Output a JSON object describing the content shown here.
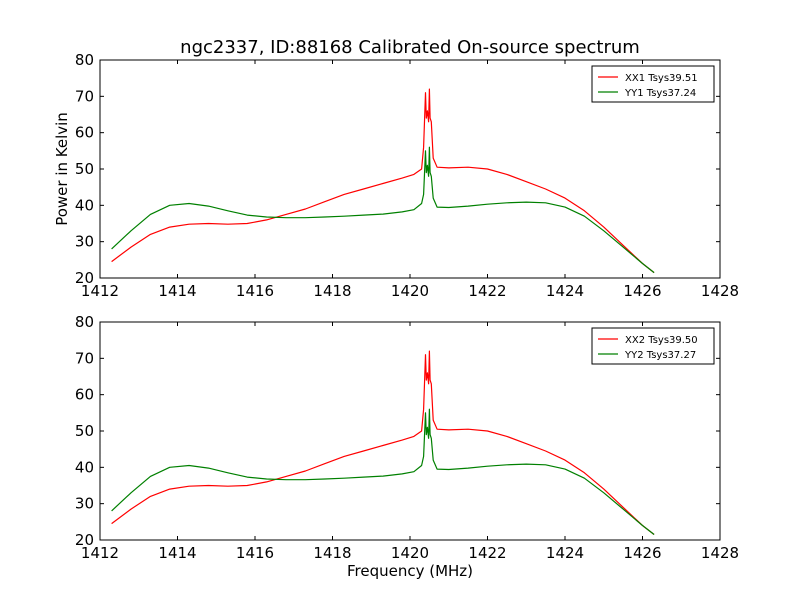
{
  "figure": {
    "title": "ngc2337, ID:88168 Calibrated On-source spectrum",
    "ylabel": "Power in Kelvin",
    "xlabel": "Frequency (MHz)"
  },
  "colors": {
    "xx": "#ff0000",
    "yy": "#008000"
  },
  "chart_data": [
    {
      "type": "line",
      "xlim": [
        1412,
        1428
      ],
      "ylim": [
        20,
        80
      ],
      "xticks": [
        1412,
        1414,
        1416,
        1418,
        1420,
        1422,
        1424,
        1426,
        1428
      ],
      "yticks": [
        20,
        30,
        40,
        50,
        60,
        70,
        80
      ],
      "legend_position": "top-right",
      "series": [
        {
          "name": "XX1 Tsys39.51",
          "color": "#ff0000",
          "x": [
            1412.3,
            1412.8,
            1413.3,
            1413.8,
            1414.3,
            1414.8,
            1415.3,
            1415.8,
            1416.3,
            1416.8,
            1417.3,
            1417.8,
            1418.3,
            1418.8,
            1419.3,
            1419.8,
            1420.1,
            1420.3,
            1420.35,
            1420.4,
            1420.42,
            1420.45,
            1420.48,
            1420.5,
            1420.52,
            1420.55,
            1420.6,
            1420.7,
            1421.0,
            1421.5,
            1422.0,
            1422.5,
            1423.0,
            1423.5,
            1424.0,
            1424.5,
            1425.0,
            1425.5,
            1426.0,
            1426.3
          ],
          "y": [
            24.5,
            28.5,
            32.0,
            34.0,
            34.8,
            35.0,
            34.8,
            35.0,
            36.0,
            37.5,
            39.0,
            41.0,
            43.0,
            44.5,
            46.0,
            47.5,
            48.5,
            50.0,
            56.0,
            71.0,
            64.0,
            66.0,
            63.0,
            72.0,
            64.0,
            63.0,
            53.0,
            50.5,
            50.3,
            50.5,
            50.0,
            48.5,
            46.5,
            44.5,
            42.0,
            38.5,
            34.0,
            29.0,
            24.0,
            21.5
          ]
        },
        {
          "name": "YY1 Tsys37.24",
          "color": "#008000",
          "x": [
            1412.3,
            1412.8,
            1413.3,
            1413.8,
            1414.3,
            1414.8,
            1415.3,
            1415.8,
            1416.3,
            1416.8,
            1417.3,
            1417.8,
            1418.3,
            1418.8,
            1419.3,
            1419.8,
            1420.1,
            1420.3,
            1420.35,
            1420.4,
            1420.42,
            1420.45,
            1420.48,
            1420.5,
            1420.52,
            1420.55,
            1420.6,
            1420.7,
            1421.0,
            1421.5,
            1422.0,
            1422.5,
            1423.0,
            1423.5,
            1424.0,
            1424.5,
            1425.0,
            1425.5,
            1426.0,
            1426.3
          ],
          "y": [
            28.0,
            33.0,
            37.5,
            40.0,
            40.5,
            39.8,
            38.5,
            37.3,
            36.8,
            36.6,
            36.6,
            36.8,
            37.0,
            37.3,
            37.6,
            38.2,
            38.8,
            40.5,
            43.0,
            55.0,
            49.0,
            51.0,
            48.0,
            56.0,
            49.0,
            48.0,
            42.0,
            39.5,
            39.4,
            39.8,
            40.3,
            40.7,
            40.9,
            40.7,
            39.5,
            37.0,
            33.0,
            28.5,
            24.0,
            21.5
          ]
        }
      ]
    },
    {
      "type": "line",
      "xlim": [
        1412,
        1428
      ],
      "ylim": [
        20,
        80
      ],
      "xticks": [
        1412,
        1414,
        1416,
        1418,
        1420,
        1422,
        1424,
        1426,
        1428
      ],
      "yticks": [
        20,
        30,
        40,
        50,
        60,
        70,
        80
      ],
      "legend_position": "top-right",
      "series": [
        {
          "name": "XX2 Tsys39.50",
          "color": "#ff0000",
          "x": [
            1412.3,
            1412.8,
            1413.3,
            1413.8,
            1414.3,
            1414.8,
            1415.3,
            1415.8,
            1416.3,
            1416.8,
            1417.3,
            1417.8,
            1418.3,
            1418.8,
            1419.3,
            1419.8,
            1420.1,
            1420.3,
            1420.35,
            1420.4,
            1420.42,
            1420.45,
            1420.48,
            1420.5,
            1420.52,
            1420.55,
            1420.6,
            1420.7,
            1421.0,
            1421.5,
            1422.0,
            1422.5,
            1423.0,
            1423.5,
            1424.0,
            1424.5,
            1425.0,
            1425.5,
            1426.0,
            1426.3
          ],
          "y": [
            24.5,
            28.5,
            32.0,
            34.0,
            34.8,
            35.0,
            34.8,
            35.0,
            36.0,
            37.5,
            39.0,
            41.0,
            43.0,
            44.5,
            46.0,
            47.5,
            48.5,
            50.0,
            56.0,
            71.0,
            64.0,
            66.0,
            63.0,
            72.0,
            64.0,
            63.0,
            53.0,
            50.5,
            50.3,
            50.5,
            50.0,
            48.5,
            46.5,
            44.5,
            42.0,
            38.5,
            34.0,
            29.0,
            24.0,
            21.5
          ]
        },
        {
          "name": "YY2 Tsys37.27",
          "color": "#008000",
          "x": [
            1412.3,
            1412.8,
            1413.3,
            1413.8,
            1414.3,
            1414.8,
            1415.3,
            1415.8,
            1416.3,
            1416.8,
            1417.3,
            1417.8,
            1418.3,
            1418.8,
            1419.3,
            1419.8,
            1420.1,
            1420.3,
            1420.35,
            1420.4,
            1420.42,
            1420.45,
            1420.48,
            1420.5,
            1420.52,
            1420.55,
            1420.6,
            1420.7,
            1421.0,
            1421.5,
            1422.0,
            1422.5,
            1423.0,
            1423.5,
            1424.0,
            1424.5,
            1425.0,
            1425.5,
            1426.0,
            1426.3
          ],
          "y": [
            28.0,
            33.0,
            37.5,
            40.0,
            40.5,
            39.8,
            38.5,
            37.3,
            36.8,
            36.6,
            36.6,
            36.8,
            37.0,
            37.3,
            37.6,
            38.2,
            38.8,
            40.5,
            43.0,
            55.0,
            49.0,
            51.0,
            48.0,
            56.0,
            49.0,
            48.0,
            42.0,
            39.5,
            39.4,
            39.8,
            40.3,
            40.7,
            40.9,
            40.7,
            39.5,
            37.0,
            33.0,
            28.5,
            24.0,
            21.5
          ]
        }
      ]
    }
  ]
}
